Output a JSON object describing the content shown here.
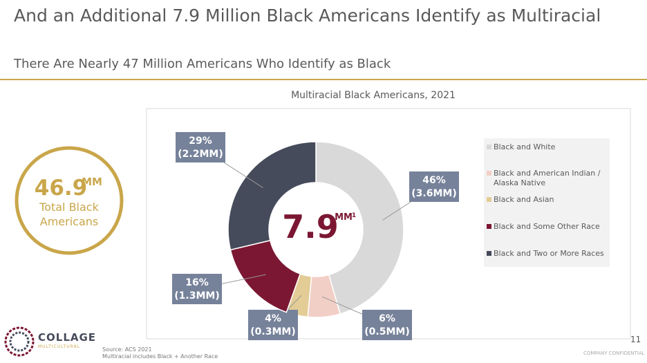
{
  "slide": {
    "title": "And an Additional 7.9 Million Black Americans Identify as Multiracial",
    "subtitle": "There Are Nearly 47 Million Americans Who Identify as Black",
    "callout": {
      "number": "46.9",
      "unit": "MM",
      "lines": [
        "Total Black",
        "Americans"
      ]
    },
    "source": [
      "Source: ACS 2021",
      "Multiracial includes Black + Another Race"
    ],
    "logo": {
      "name": "COLLAGE",
      "tagline": "MULTICULTURAL"
    },
    "page_number": "11",
    "footer": "COMPANY CONFIDENTIAL"
  },
  "chart_data": {
    "type": "donut",
    "title": "Multiracial Black Americans, 2021",
    "categories": [
      "Black and White",
      "Black and American Indian / Alaska Native",
      "Black and Asian",
      "Black and Some Other Race",
      "Black and Two or More Races"
    ],
    "values": [
      46,
      6,
      4,
      16,
      29
    ],
    "value_labels": [
      "46%",
      "6%",
      "4%",
      "16%",
      "29%"
    ],
    "sub_labels": [
      "(3.6MM)",
      "(0.5MM)",
      "(0.3MM)",
      "(1.3MM)",
      "(2.2MM)"
    ],
    "colors": [
      "#d9d9d9",
      "#f2cfc6",
      "#e3cc96",
      "#7b1733",
      "#464b5b"
    ],
    "center_label": "7.9",
    "center_unit": "MM",
    "center_note": "1",
    "legend": "right"
  }
}
